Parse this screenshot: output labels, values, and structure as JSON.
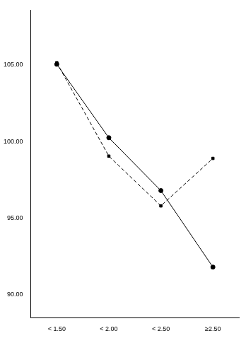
{
  "chart_data": {
    "type": "line",
    "categories": [
      "< 1.50",
      "< 2.00",
      "< 2.50",
      "≥2.50"
    ],
    "series": [
      {
        "color": "#000000",
        "marker": "circle",
        "line_style": "solid",
        "values": [
          105.05,
          100.25,
          96.8,
          91.8
        ]
      },
      {
        "color": "#000000",
        "marker": "square",
        "line_style": "dashed",
        "values": [
          105.15,
          99.05,
          95.8,
          98.9
        ]
      }
    ],
    "ylim": [
      88.5,
      108.6
    ],
    "yticks": [
      {
        "value": 90,
        "label": "90.00"
      },
      {
        "value": 95,
        "label": "95.00"
      },
      {
        "value": 100,
        "label": "100.00"
      },
      {
        "value": 105,
        "label": "105.00"
      }
    ],
    "grid": false
  }
}
